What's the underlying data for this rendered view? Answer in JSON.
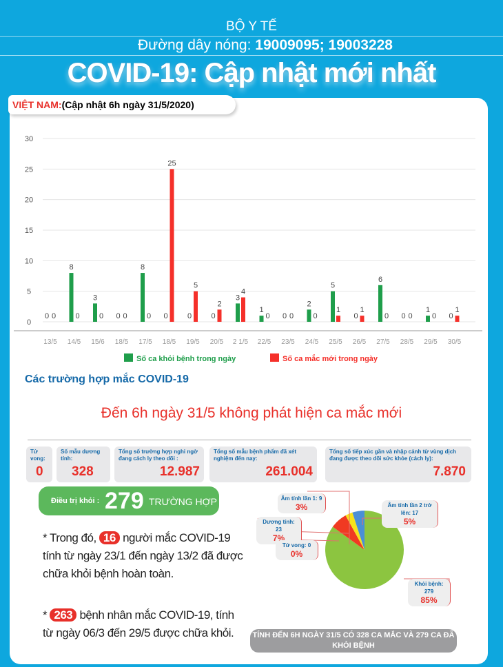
{
  "header": {
    "org": "BỘ Y TẾ",
    "hotline_label": "Đường dây nóng:",
    "hotline_numbers": "19009095; 19003228",
    "title": "COVID-19: Cập nhật mới nhất"
  },
  "tag": {
    "country": "VIỆT NAM:",
    "update": "(Cập nhật 6h ngày 31/5/2020)"
  },
  "chart_data": {
    "type": "bar",
    "categories": [
      "13/5",
      "14/5",
      "15/6",
      "18/5",
      "17/5",
      "18/5",
      "19/5",
      "20/5",
      "2 1/5",
      "22/5",
      "23/5",
      "24/5",
      "25/5",
      "26/5",
      "27/5",
      "28/5",
      "29/5",
      "30/5"
    ],
    "series": [
      {
        "name": "Số ca khỏi bệnh trong ngày",
        "color": "#1f9e4b",
        "values": [
          0,
          8,
          3,
          0,
          8,
          0,
          0,
          0,
          3,
          1,
          0,
          2,
          5,
          0,
          6,
          0,
          1,
          0
        ]
      },
      {
        "name": "Số ca mắc mới trong ngày",
        "color": "#f5302a",
        "values": [
          0,
          0,
          0,
          0,
          0,
          25,
          5,
          2,
          4,
          0,
          0,
          0,
          1,
          1,
          0,
          0,
          0,
          1
        ]
      }
    ],
    "ylim": [
      0,
      30
    ],
    "yticks": [
      0,
      5,
      10,
      15,
      20,
      25,
      30
    ],
    "legend": "bottom",
    "grid": true,
    "title": "",
    "xlabel": "",
    "ylabel": ""
  },
  "section_title": "Các trường hợp mắc COVID-19",
  "headline": "Đến 6h ngày 31/5 không phát hiện ca mắc mới",
  "stats": [
    {
      "label": "Tử vong:",
      "value": "0"
    },
    {
      "label": "Số mẫu dương tính:",
      "value": "328"
    },
    {
      "label": "Tổng số trường hợp nghi ngờ đang cách ly theo dõi :",
      "value": "12.987"
    },
    {
      "label": "Tổng số mẫu bệnh phẩm đã xét nghiệm đến nay:",
      "value": "261.004"
    },
    {
      "label": "Tổng số tiếp xúc gần và nhập cảnh từ vùng dịch đang được theo dõi sức khỏe (cách ly):",
      "value": "7.870"
    }
  ],
  "recovered": {
    "label": "Điều trị khỏi :",
    "value": "279",
    "unit": "TRƯỜNG HỢP"
  },
  "notes": [
    {
      "prefix": "* Trong đó,",
      "num": "16",
      "text": "người mắc COVID-19 tính từ ngày 23/1 đến ngày 13/2 đã được chữa khỏi bệnh hoàn toàn."
    },
    {
      "prefix": "*",
      "num": "263",
      "text": "bệnh nhân  mắc COVID-19, tính từ ngày 06/3 đến 29/5 được chữa khỏi."
    }
  ],
  "pie": {
    "slices": [
      {
        "label": "Khỏi bệnh: 279",
        "pct": "85%",
        "value": 85,
        "color": "#8cc540"
      },
      {
        "label": "Dương tính: 23",
        "pct": "7%",
        "value": 7,
        "color": "#f03a22"
      },
      {
        "label": "Âm tính lần 1: 9",
        "pct": "3%",
        "value": 3,
        "color": "#f7e21b"
      },
      {
        "label": "Âm tính lần 2 trở lên: 17",
        "pct": "5%",
        "value": 5,
        "color": "#4a8fd6"
      },
      {
        "label": "Tử vong: 0",
        "pct": "0%",
        "value": 0,
        "color": "#333333"
      }
    ]
  },
  "footer": "TÍNH ĐẾN 6H NGÀY 31/5 CÓ 328 CA MẮC VÀ 279  CA ĐÃ KHỎI BỆNH"
}
